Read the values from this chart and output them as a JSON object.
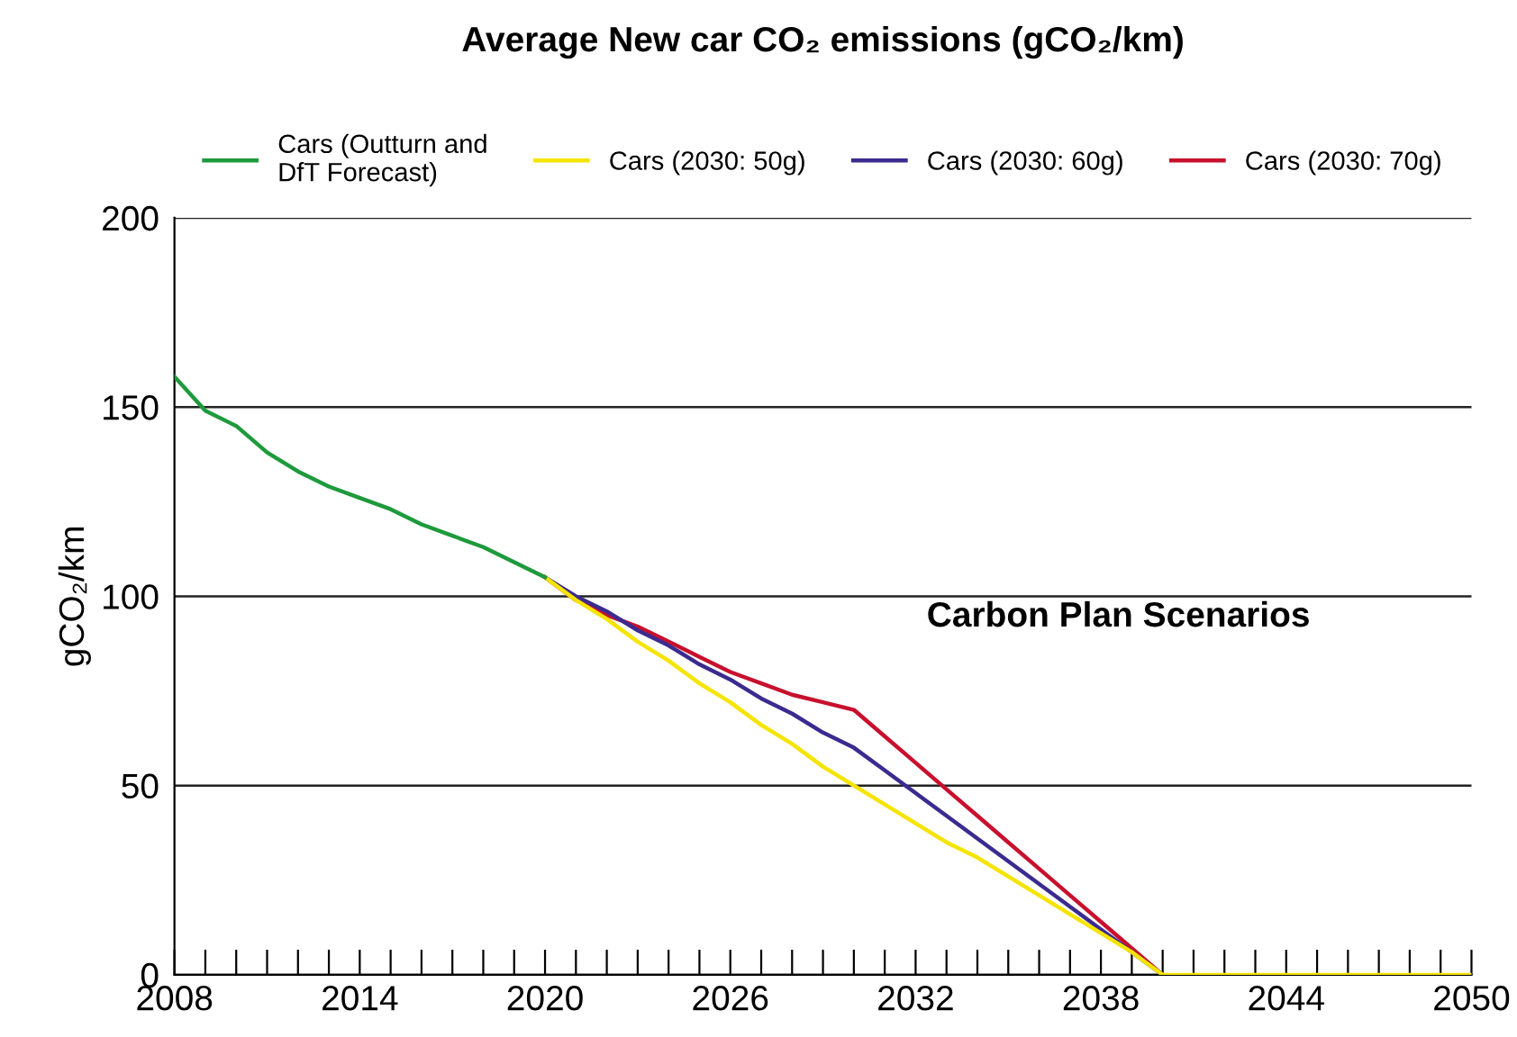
{
  "chart_data": {
    "type": "line",
    "title": "Average New car CO₂ emissions (gCO₂/km)",
    "ylabel": "gCO₂/km",
    "annotations": [
      "Carbon Plan Scenarios"
    ],
    "series": [
      {
        "name": "Cars (Outturn and\nDfT Forecast)",
        "color": "#1e9a3c",
        "x": [
          2008,
          2009,
          2010,
          2011,
          2012,
          2013,
          2014,
          2015,
          2016,
          2017,
          2018,
          2019,
          2020
        ],
        "values": [
          158,
          149,
          145,
          138,
          133,
          129,
          126,
          123,
          119,
          116,
          113,
          109,
          105
        ]
      },
      {
        "name": "Cars (2030: 50g)",
        "color": "#f5e400",
        "x": [
          2020,
          2021,
          2022,
          2023,
          2024,
          2025,
          2026,
          2027,
          2028,
          2029,
          2030,
          2031,
          2032,
          2033,
          2034,
          2035,
          2036,
          2037,
          2038,
          2039,
          2040,
          2041,
          2042,
          2043,
          2044,
          2045,
          2046,
          2047,
          2048,
          2049,
          2050
        ],
        "values": [
          105,
          99,
          94,
          88,
          83,
          77,
          72,
          66,
          61,
          55,
          50,
          45,
          40,
          35,
          31,
          26,
          21,
          16,
          11,
          6,
          0,
          0,
          0,
          0,
          0,
          0,
          0,
          0,
          0,
          0,
          0
        ]
      },
      {
        "name": "Cars (2030: 60g)",
        "color": "#3b2b8f",
        "x": [
          2020,
          2021,
          2022,
          2023,
          2024,
          2025,
          2026,
          2027,
          2028,
          2029,
          2030,
          2031,
          2032,
          2033,
          2034,
          2035,
          2036,
          2037,
          2038,
          2039,
          2040
        ],
        "values": [
          105,
          100,
          96,
          91,
          87,
          82,
          78,
          73,
          69,
          64,
          60,
          54,
          48,
          42,
          36,
          30,
          24,
          18,
          12,
          6,
          0
        ]
      },
      {
        "name": "Cars (2030: 70g)",
        "color": "#c8102e",
        "x": [
          2020,
          2021,
          2022,
          2023,
          2024,
          2025,
          2026,
          2027,
          2028,
          2029,
          2030,
          2031,
          2032,
          2033,
          2034,
          2035,
          2036,
          2037,
          2038,
          2039,
          2040
        ],
        "values": [
          105,
          99,
          95,
          92,
          88,
          84,
          80,
          77,
          74,
          72,
          70,
          63,
          56,
          49,
          42,
          35,
          28,
          21,
          14,
          7,
          0
        ]
      }
    ],
    "xlim": [
      2008,
      2050
    ],
    "ylim": [
      0,
      200
    ],
    "yticks": [
      0,
      50,
      100,
      150,
      200
    ],
    "xticks": [
      2008,
      {
        "value": 2009,
        "label": null
      },
      {
        "value": 2010,
        "label": null
      },
      {
        "value": 2011,
        "label": null
      },
      {
        "value": 2012,
        "label": null
      },
      {
        "value": 2013,
        "label": null
      },
      2014,
      {
        "value": 2015,
        "label": null
      },
      {
        "value": 2016,
        "label": null
      },
      {
        "value": 2017,
        "label": null
      },
      {
        "value": 2018,
        "label": null
      },
      {
        "value": 2019,
        "label": null
      },
      2020,
      {
        "value": 2021,
        "label": null
      },
      {
        "value": 2022,
        "label": null
      },
      {
        "value": 2023,
        "label": null
      },
      {
        "value": 2024,
        "label": null
      },
      {
        "value": 2025,
        "label": null
      },
      2026,
      {
        "value": 2027,
        "label": null
      },
      {
        "value": 2028,
        "label": null
      },
      {
        "value": 2029,
        "label": null
      },
      {
        "value": 2030,
        "label": null
      },
      {
        "value": 2031,
        "label": null
      },
      2032,
      {
        "value": 2033,
        "label": null
      },
      {
        "value": 2034,
        "label": null
      },
      {
        "value": 2035,
        "label": null
      },
      {
        "value": 2036,
        "label": null
      },
      {
        "value": 2037,
        "label": null
      },
      2038,
      {
        "value": 2039,
        "label": null
      },
      {
        "value": 2040,
        "label": null
      },
      {
        "value": 2041,
        "label": null
      },
      {
        "value": 2042,
        "label": null
      },
      {
        "value": 2043,
        "label": null
      },
      2044,
      {
        "value": 2045,
        "label": null
      },
      {
        "value": 2046,
        "label": null
      },
      {
        "value": 2047,
        "label": null
      },
      {
        "value": 2048,
        "label": null
      },
      {
        "value": 2049,
        "label": null
      },
      2050
    ],
    "grid": "y",
    "legend": "top",
    "marker": "none",
    "line_style": "solid"
  }
}
